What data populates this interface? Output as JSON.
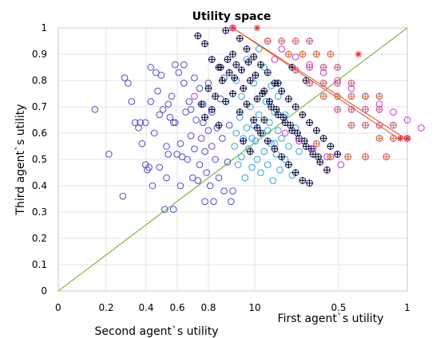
{
  "chart_data": {
    "type": "scatter",
    "title": "Utility space",
    "xlabel_left": "Second agent`s utility",
    "xlabel_right": "First agent`s utility",
    "ylabel": "Third agent`s utility",
    "ylim": [
      0,
      1
    ],
    "yticks": [
      "0",
      "0.1",
      "0.2",
      "0.3",
      "0.4",
      "0.5",
      "0.6",
      "0.7",
      "0.8",
      "0.9",
      "1"
    ],
    "xticks": [
      "0",
      "0.2",
      "0.4",
      "0.6",
      "0.8",
      "10",
      "0.5",
      "1"
    ],
    "grid": true,
    "colors": {
      "blue_circle": "#4d4dc8",
      "cyan_circle": "#33a0e0",
      "cross": "#000000",
      "magenta_circle": "#d033d0",
      "orange_plus": "#f08000",
      "red_star": "#e83030",
      "diagonal": "#66aa22",
      "pareto_line": "#e04a1a"
    },
    "series": [
      {
        "marker": "blue-circle",
        "points": [
          [
            0.21,
            0.69
          ],
          [
            0.29,
            0.52
          ],
          [
            0.37,
            0.36
          ],
          [
            0.38,
            0.81
          ],
          [
            0.4,
            0.79
          ],
          [
            0.42,
            0.72
          ],
          [
            0.44,
            0.64
          ],
          [
            0.46,
            0.62
          ],
          [
            0.47,
            0.64
          ],
          [
            0.48,
            0.56
          ],
          [
            0.5,
            0.48
          ],
          [
            0.5,
            0.64
          ],
          [
            0.51,
            0.46
          ],
          [
            0.52,
            0.47
          ],
          [
            0.53,
            0.72
          ],
          [
            0.53,
            0.85
          ],
          [
            0.54,
            0.4
          ],
          [
            0.55,
            0.6
          ],
          [
            0.56,
            0.83
          ],
          [
            0.57,
            0.76
          ],
          [
            0.58,
            0.67
          ],
          [
            0.58,
            0.47
          ],
          [
            0.59,
            0.82
          ],
          [
            0.6,
            0.69
          ],
          [
            0.61,
            0.31
          ],
          [
            0.62,
            0.43
          ],
          [
            0.62,
            0.55
          ],
          [
            0.63,
            0.71
          ],
          [
            0.64,
            0.66
          ],
          [
            0.65,
            0.74
          ],
          [
            0.66,
            0.31
          ],
          [
            0.67,
            0.86
          ],
          [
            0.67,
            0.64
          ],
          [
            0.68,
            0.52
          ],
          [
            0.69,
            0.83
          ],
          [
            0.7,
            0.4
          ],
          [
            0.7,
            0.56
          ],
          [
            0.71,
            0.51
          ],
          [
            0.72,
            0.79
          ],
          [
            0.73,
            0.68
          ],
          [
            0.74,
            0.5
          ],
          [
            0.75,
            0.72
          ],
          [
            0.76,
            0.59
          ],
          [
            0.77,
            0.43
          ],
          [
            0.78,
            0.81
          ],
          [
            0.78,
            0.54
          ],
          [
            0.79,
            0.65
          ],
          [
            0.8,
            0.42
          ],
          [
            0.81,
            0.77
          ],
          [
            0.81,
            0.48
          ],
          [
            0.82,
            0.58
          ],
          [
            0.83,
            0.71
          ],
          [
            0.84,
            0.53
          ],
          [
            0.84,
            0.34
          ],
          [
            0.85,
            0.45
          ],
          [
            0.86,
            0.61
          ],
          [
            0.86,
            0.79
          ],
          [
            0.87,
            0.4
          ],
          [
            0.88,
            0.68
          ],
          [
            0.88,
            0.55
          ],
          [
            0.89,
            0.34
          ],
          [
            0.9,
            0.5
          ],
          [
            0.91,
            0.62
          ],
          [
            0.92,
            0.43
          ],
          [
            0.93,
            0.73
          ],
          [
            0.94,
            0.58
          ],
          [
            0.95,
            0.38
          ],
          [
            0.95,
            0.81
          ],
          [
            0.97,
            0.49
          ],
          [
            0.98,
            0.63
          ],
          [
            0.99,
            0.34
          ],
          [
            1.0,
            0.38
          ],
          [
            0.72,
            0.86
          ],
          [
            0.66,
            0.64
          ],
          [
            0.63,
            0.52
          ],
          [
            0.76,
            0.69
          ],
          [
            0.83,
            0.64
          ]
        ]
      },
      {
        "marker": "cyan-circle",
        "points": [
          [
            1.01,
            0.55
          ],
          [
            1.02,
            0.6
          ],
          [
            1.03,
            0.48
          ],
          [
            1.04,
            0.66
          ],
          [
            1.05,
            0.51
          ],
          [
            1.06,
            0.58
          ],
          [
            1.07,
            0.43
          ],
          [
            1.08,
            0.62
          ],
          [
            1.09,
            0.54
          ],
          [
            1.1,
            0.7
          ],
          [
            1.11,
            0.47
          ],
          [
            1.12,
            0.63
          ],
          [
            1.13,
            0.57
          ],
          [
            1.14,
            0.5
          ],
          [
            1.15,
            0.67
          ],
          [
            1.16,
            0.45
          ],
          [
            1.17,
            0.6
          ],
          [
            1.18,
            0.53
          ],
          [
            1.19,
            0.72
          ],
          [
            1.2,
            0.48
          ],
          [
            1.21,
            0.64
          ],
          [
            1.22,
            0.56
          ],
          [
            1.23,
            0.42
          ],
          [
            1.24,
            0.68
          ],
          [
            1.25,
            0.52
          ],
          [
            1.26,
            0.61
          ],
          [
            1.27,
            0.46
          ],
          [
            1.28,
            0.58
          ],
          [
            1.3,
            0.5
          ],
          [
            1.32,
            0.55
          ],
          [
            1.34,
            0.44
          ],
          [
            1.36,
            0.62
          ],
          [
            1.38,
            0.53
          ],
          [
            1.05,
            0.74
          ],
          [
            1.12,
            0.79
          ],
          [
            1.18,
            0.85
          ],
          [
            1.22,
            0.78
          ],
          [
            1.26,
            0.74
          ],
          [
            1.08,
            0.88
          ],
          [
            1.15,
            0.92
          ],
          [
            1.02,
            0.8
          ],
          [
            1.3,
            0.67
          ],
          [
            1.11,
            0.58
          ],
          [
            1.2,
            0.61
          ],
          [
            1.24,
            0.56
          ]
        ]
      },
      {
        "marker": "black-cross",
        "points": [
          [
            0.8,
            0.97
          ],
          [
            0.84,
            0.94
          ],
          [
            0.88,
            0.88
          ],
          [
            0.92,
            0.85
          ],
          [
            0.96,
            0.99
          ],
          [
            1.0,
            0.9
          ],
          [
            1.04,
            0.96
          ],
          [
            1.08,
            0.92
          ],
          [
            1.12,
            0.89
          ],
          [
            1.16,
            0.86
          ],
          [
            1.2,
            0.83
          ],
          [
            1.24,
            0.79
          ],
          [
            1.28,
            0.76
          ],
          [
            1.32,
            0.73
          ],
          [
            1.36,
            0.7
          ],
          [
            1.4,
            0.67
          ],
          [
            1.44,
            0.64
          ],
          [
            1.48,
            0.61
          ],
          [
            1.52,
            0.58
          ],
          [
            1.56,
            0.55
          ],
          [
            1.6,
            0.52
          ],
          [
            0.82,
            0.71
          ],
          [
            0.86,
            0.77
          ],
          [
            0.9,
            0.74
          ],
          [
            0.94,
            0.8
          ],
          [
            0.98,
            0.83
          ],
          [
            1.02,
            0.86
          ],
          [
            1.06,
            0.77
          ],
          [
            1.1,
            0.8
          ],
          [
            1.14,
            0.73
          ],
          [
            1.18,
            0.76
          ],
          [
            1.22,
            0.7
          ],
          [
            1.26,
            0.67
          ],
          [
            1.3,
            0.64
          ],
          [
            1.34,
            0.61
          ],
          [
            1.38,
            0.58
          ],
          [
            1.42,
            0.55
          ],
          [
            1.46,
            0.52
          ],
          [
            1.5,
            0.49
          ],
          [
            1.54,
            0.46
          ],
          [
            0.84,
            0.66
          ],
          [
            0.88,
            0.69
          ],
          [
            0.92,
            0.63
          ],
          [
            0.96,
            0.72
          ],
          [
            1.0,
            0.75
          ],
          [
            1.04,
            0.68
          ],
          [
            1.08,
            0.71
          ],
          [
            1.12,
            0.65
          ],
          [
            1.16,
            0.6
          ],
          [
            1.2,
            0.57
          ],
          [
            1.24,
            0.54
          ],
          [
            1.28,
            0.51
          ],
          [
            1.32,
            0.48
          ],
          [
            1.36,
            0.45
          ],
          [
            1.4,
            0.42
          ],
          [
            1.44,
            0.41
          ],
          [
            0.93,
            0.85
          ],
          [
            0.97,
            0.88
          ],
          [
            1.01,
            0.81
          ],
          [
            1.05,
            0.84
          ],
          [
            1.09,
            0.87
          ],
          [
            1.13,
            0.82
          ],
          [
            1.17,
            0.75
          ],
          [
            1.21,
            0.72
          ],
          [
            1.25,
            0.69
          ],
          [
            1.29,
            0.66
          ],
          [
            1.33,
            0.63
          ],
          [
            1.37,
            0.6
          ],
          [
            1.41,
            0.57
          ],
          [
            1.45,
            0.54
          ],
          [
            1.49,
            0.51
          ],
          [
            1.06,
            0.57
          ],
          [
            1.1,
            0.53
          ],
          [
            1.14,
            0.62
          ],
          [
            1.18,
            0.65
          ],
          [
            1.26,
            0.79
          ],
          [
            1.34,
            0.85
          ],
          [
            1.42,
            0.8
          ]
        ]
      },
      {
        "marker": "magenta-circle",
        "points": [
          [
            1.0,
            1.0
          ],
          [
            1.2,
            0.95
          ],
          [
            1.28,
            0.92
          ],
          [
            1.36,
            0.89
          ],
          [
            1.44,
            0.86
          ],
          [
            1.52,
            0.83
          ],
          [
            1.6,
            0.8
          ],
          [
            1.68,
            0.77
          ],
          [
            1.76,
            0.74
          ],
          [
            1.84,
            0.71
          ],
          [
            1.92,
            0.68
          ],
          [
            2.0,
            0.65
          ],
          [
            2.08,
            0.62
          ],
          [
            1.3,
            0.6
          ],
          [
            1.38,
            0.57
          ],
          [
            1.46,
            0.54
          ],
          [
            1.54,
            0.51
          ],
          [
            1.62,
            0.48
          ],
          [
            0.78,
            0.74
          ],
          [
            1.24,
            0.88
          ]
        ]
      },
      {
        "marker": "orange-plus",
        "points": [
          [
            1.2,
            0.95
          ],
          [
            1.28,
            0.95
          ],
          [
            1.36,
            0.95
          ],
          [
            1.44,
            0.95
          ],
          [
            1.32,
            0.9
          ],
          [
            1.4,
            0.9
          ],
          [
            1.48,
            0.9
          ],
          [
            1.56,
            0.9
          ],
          [
            1.44,
            0.85
          ],
          [
            1.52,
            0.85
          ],
          [
            1.6,
            0.85
          ],
          [
            1.52,
            0.79
          ],
          [
            1.6,
            0.79
          ],
          [
            1.68,
            0.79
          ],
          [
            1.6,
            0.74
          ],
          [
            1.68,
            0.74
          ],
          [
            1.76,
            0.74
          ],
          [
            1.84,
            0.74
          ],
          [
            1.68,
            0.69
          ],
          [
            1.76,
            0.69
          ],
          [
            1.84,
            0.69
          ],
          [
            1.76,
            0.63
          ],
          [
            1.84,
            0.63
          ],
          [
            1.92,
            0.63
          ],
          [
            1.84,
            0.58
          ],
          [
            1.92,
            0.58
          ],
          [
            2.0,
            0.58
          ],
          [
            1.48,
            0.56
          ],
          [
            1.56,
            0.51
          ],
          [
            1.66,
            0.51
          ],
          [
            1.76,
            0.51
          ],
          [
            1.88,
            0.51
          ],
          [
            1.36,
            0.84
          ],
          [
            1.44,
            0.79
          ],
          [
            1.52,
            0.74
          ],
          [
            1.6,
            0.69
          ],
          [
            1.68,
            0.63
          ]
        ]
      },
      {
        "marker": "red-star",
        "points": [
          [
            1.0,
            1.0
          ],
          [
            1.72,
            0.9
          ],
          [
            1.96,
            0.58
          ],
          [
            2.0,
            0.58
          ],
          [
            1.14,
            1.0
          ]
        ]
      }
    ],
    "lines": [
      {
        "marker": "diagonal",
        "points": [
          [
            0,
            0
          ],
          [
            2,
            1
          ]
        ]
      },
      {
        "marker": "pareto-line",
        "points": [
          [
            1.0,
            1.0
          ],
          [
            1.96,
            0.575
          ]
        ]
      },
      {
        "marker": "pareto-line",
        "points": [
          [
            1.0,
            1.0
          ],
          [
            2.0,
            0.575
          ]
        ]
      }
    ]
  }
}
